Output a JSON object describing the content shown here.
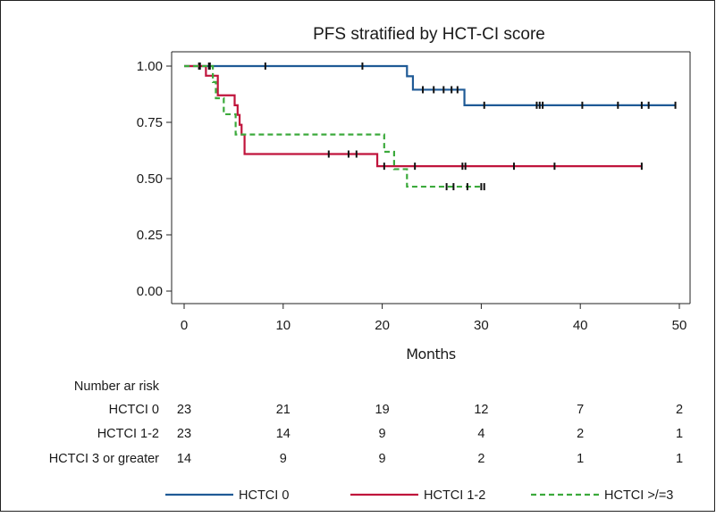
{
  "chart_data": {
    "type": "line",
    "title": "PFS stratified by HCT-CI score",
    "xlabel": "Months",
    "ylabel": "",
    "xlim": [
      0,
      50
    ],
    "ylim": [
      0,
      1
    ],
    "x_ticks": [
      "0",
      "10",
      "20",
      "30",
      "40",
      "50"
    ],
    "y_ticks": [
      "0.00",
      "0.25",
      "0.50",
      "0.75",
      "1.00"
    ],
    "grid": false,
    "legend_position": "bottom",
    "series": [
      {
        "name": "HCTCI 0",
        "color": "#1f5a96",
        "dash": "solid",
        "steps": [
          [
            0,
            1.0
          ],
          [
            22.5,
            0.955
          ],
          [
            23.1,
            0.895
          ],
          [
            28.3,
            0.826
          ],
          [
            49.6,
            0.826
          ]
        ],
        "censor": [
          [
            1.5,
            1.0
          ],
          [
            2.5,
            1.0
          ],
          [
            8.2,
            1.0
          ],
          [
            18.0,
            1.0
          ],
          [
            24.1,
            0.895
          ],
          [
            25.2,
            0.895
          ],
          [
            26.2,
            0.895
          ],
          [
            27.0,
            0.895
          ],
          [
            27.6,
            0.895
          ],
          [
            30.3,
            0.826
          ],
          [
            35.6,
            0.826
          ],
          [
            35.9,
            0.826
          ],
          [
            36.2,
            0.826
          ],
          [
            40.2,
            0.826
          ],
          [
            43.8,
            0.826
          ],
          [
            46.2,
            0.826
          ],
          [
            46.9,
            0.826
          ],
          [
            49.6,
            0.826
          ]
        ]
      },
      {
        "name": "HCTCI 1-2",
        "color": "#c0143c",
        "dash": "solid",
        "steps": [
          [
            0,
            1.0
          ],
          [
            2.2,
            0.957
          ],
          [
            3.4,
            0.87
          ],
          [
            5.1,
            0.826
          ],
          [
            5.4,
            0.783
          ],
          [
            5.6,
            0.739
          ],
          [
            5.8,
            0.696
          ],
          [
            6.1,
            0.609
          ],
          [
            19.5,
            0.555
          ],
          [
            46.2,
            0.555
          ]
        ],
        "censor": [
          [
            14.6,
            0.609
          ],
          [
            16.6,
            0.609
          ],
          [
            17.4,
            0.609
          ],
          [
            20.2,
            0.555
          ],
          [
            23.3,
            0.555
          ],
          [
            28.1,
            0.555
          ],
          [
            28.4,
            0.555
          ],
          [
            33.3,
            0.555
          ],
          [
            37.4,
            0.555
          ],
          [
            46.2,
            0.555
          ]
        ]
      },
      {
        "name": "HCTCI >/=3",
        "color": "#3caa3c",
        "dash": "dashed",
        "steps": [
          [
            0,
            1.0
          ],
          [
            2.9,
            0.929
          ],
          [
            3.2,
            0.857
          ],
          [
            4.0,
            0.786
          ],
          [
            5.2,
            0.696
          ],
          [
            20.2,
            0.619
          ],
          [
            21.2,
            0.542
          ],
          [
            22.5,
            0.464
          ],
          [
            30.2,
            0.464
          ]
        ],
        "censor": [
          [
            1.6,
            1.0
          ],
          [
            2.6,
            1.0
          ],
          [
            26.5,
            0.464
          ],
          [
            27.2,
            0.464
          ],
          [
            28.6,
            0.464
          ],
          [
            30.0,
            0.464
          ],
          [
            30.3,
            0.464
          ]
        ]
      }
    ],
    "risk_table": {
      "heading": "Number ar risk",
      "times": [
        0,
        10,
        20,
        30,
        40,
        50
      ],
      "rows": [
        {
          "label": "HCTCI 0",
          "values": [
            "23",
            "21",
            "19",
            "12",
            "7",
            "2"
          ]
        },
        {
          "label": "HCTCI 1-2",
          "values": [
            "23",
            "14",
            "9",
            "4",
            "2",
            "1"
          ]
        },
        {
          "label": "HCTCI 3 or greater",
          "values": [
            "14",
            "9",
            "9",
            "2",
            "1",
            "1"
          ]
        }
      ]
    }
  }
}
